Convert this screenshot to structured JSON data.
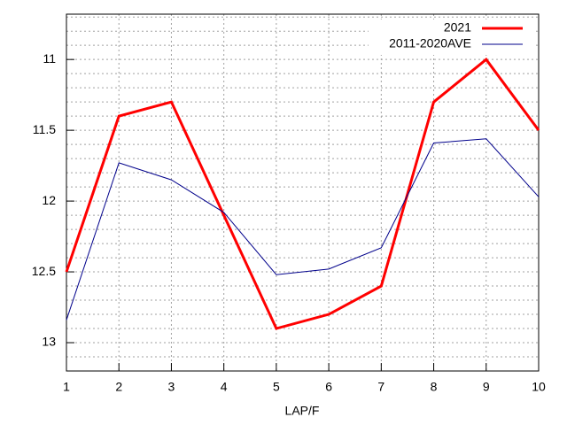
{
  "chart_data": {
    "type": "line",
    "x_label": "LAP/F",
    "x": [
      1,
      2,
      3,
      4,
      5,
      6,
      7,
      8,
      9,
      10
    ],
    "series": [
      {
        "name": "2021",
        "color": "#ff0000",
        "width": 3,
        "values": [
          12.5,
          11.4,
          11.3,
          12.1,
          12.9,
          12.8,
          12.6,
          11.3,
          11.0,
          11.5
        ]
      },
      {
        "name": "2011-2020AVE",
        "color": "#00008b",
        "width": 1,
        "values": [
          12.84,
          11.73,
          11.85,
          12.08,
          12.52,
          12.48,
          12.33,
          11.59,
          11.56,
          11.97
        ]
      }
    ],
    "xlim": [
      1,
      10
    ],
    "xticks": [
      1,
      2,
      3,
      4,
      5,
      6,
      7,
      8,
      9,
      10
    ],
    "ylim": [
      13.2,
      10.68
    ],
    "yticks": [
      11,
      11.5,
      12,
      12.5,
      13
    ],
    "y_minor_ticks": [
      10.7,
      10.8,
      10.9,
      11.1,
      11.2,
      11.3,
      11.4,
      11.6,
      11.7,
      11.8,
      11.9,
      12.1,
      12.2,
      12.3,
      12.4,
      12.6,
      12.7,
      12.8,
      12.9,
      13.1,
      13.2
    ],
    "y_reversed": true,
    "grid": true,
    "legend": "top-right"
  }
}
